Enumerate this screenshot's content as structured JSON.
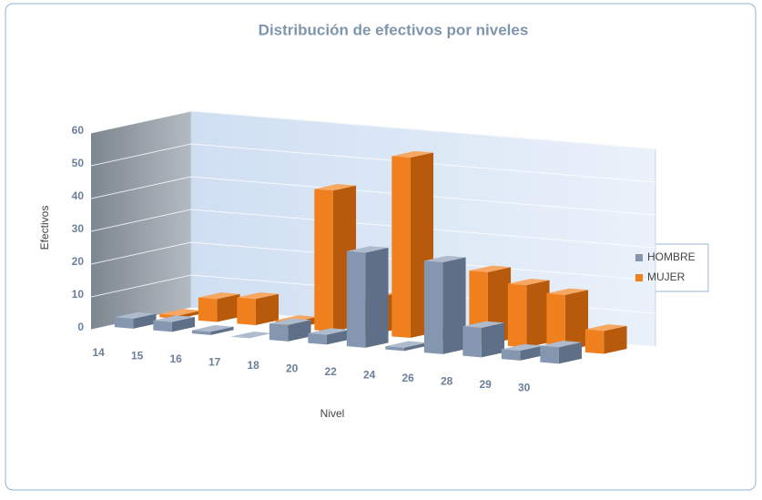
{
  "chart_data": {
    "type": "bar3d",
    "title": "Distribución de efectivos por niveles",
    "x_label": "Nivel",
    "y_label": "Efectivos",
    "categories": [
      "14",
      "15",
      "16",
      "17",
      "18",
      "20",
      "22",
      "24",
      "26",
      "28",
      "29",
      "30"
    ],
    "series": [
      {
        "name": "HOMBRE",
        "color": "#8496b0",
        "values": [
          3,
          3,
          1,
          0,
          5,
          3,
          29,
          1,
          28,
          9,
          3,
          5
        ]
      },
      {
        "name": "MUJER",
        "color": "#f07f1e",
        "values": [
          1,
          7,
          8,
          2,
          43,
          11,
          55,
          3,
          22,
          19,
          17,
          7
        ]
      }
    ],
    "ylim": [
      0,
      60
    ],
    "yticks": [
      0,
      10,
      20,
      30,
      40,
      50,
      60
    ],
    "grid": true,
    "legend": "right"
  }
}
